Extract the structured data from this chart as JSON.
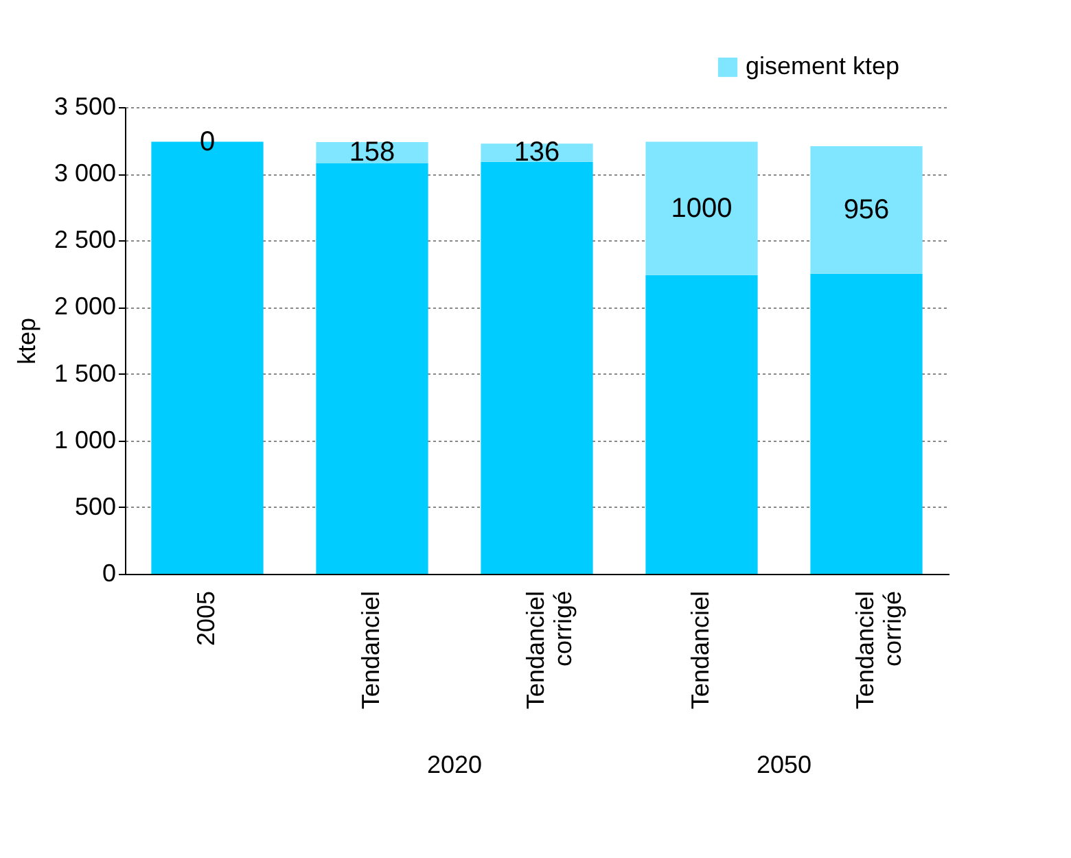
{
  "chart_data": {
    "type": "bar",
    "stacked": true,
    "ylabel": "ktep",
    "categories": [
      "2005",
      "Tendanciel",
      "Tendanciel corrigé",
      "Tendanciel",
      "Tendanciel corrigé"
    ],
    "series": [
      {
        "color": "#00ccff",
        "values": [
          3240,
          3080,
          3090,
          2240,
          2250
        ]
      },
      {
        "name": "gisement ktep",
        "color": "#80e5ff",
        "values": [
          0,
          158,
          136,
          1000,
          956
        ],
        "value_labels": [
          "0",
          "158",
          "136",
          "1000",
          "956"
        ]
      }
    ],
    "ylim": [
      0,
      3500
    ],
    "yticks": [
      0,
      500,
      {
        "value": 1000,
        "label": "1 000"
      },
      {
        "value": 1500,
        "label": "1 500"
      },
      {
        "value": 2000,
        "label": "2 000"
      },
      {
        "value": 2500,
        "label": "2 500"
      },
      {
        "value": 3000,
        "label": "3 000"
      },
      {
        "value": 3500,
        "label": "3 500"
      }
    ],
    "grid": "y",
    "legend": "top right",
    "annotations": [
      "2020",
      "2050"
    ]
  }
}
